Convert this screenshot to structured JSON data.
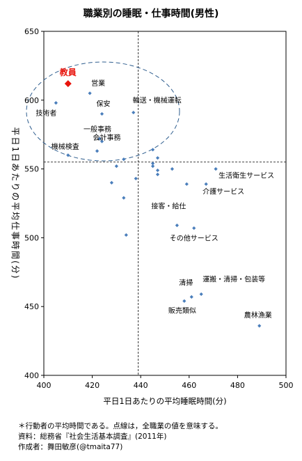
{
  "chart_data": {
    "type": "scatter",
    "title": "職業別の睡眠・仕事時間(男性)",
    "xlabel": "平日1日あたりの平均睡眠時間(分)",
    "ylabel": "平日1日あたりの平均仕事時間(分)",
    "xlim": [
      400,
      500
    ],
    "ylim": [
      400,
      650
    ],
    "xticks": [
      "400",
      "420",
      "440",
      "460",
      "480",
      "500"
    ],
    "yticks": [
      "400",
      "450",
      "500",
      "550",
      "600",
      "650"
    ],
    "grid": false,
    "reference_lines": {
      "x": 439,
      "y": 555
    },
    "marker_color": "#4a7ebb",
    "highlight_color": "#e8140c",
    "highlight": {
      "label": "教員",
      "x": 410,
      "y": 612
    },
    "points": [
      {
        "label": "技術者",
        "x": 405,
        "y": 598
      },
      {
        "label": "営業",
        "x": 419,
        "y": 605
      },
      {
        "label": "保安",
        "x": 424,
        "y": 590
      },
      {
        "label": "輸送・機械運転",
        "x": 437,
        "y": 591
      },
      {
        "label": "一般事務",
        "x": 423,
        "y": 572
      },
      {
        "label": "",
        "x": 424,
        "y": 570
      },
      {
        "label": "会計事務",
        "x": 422,
        "y": 563
      },
      {
        "label": "機械検査",
        "x": 410,
        "y": 560
      },
      {
        "label": "",
        "x": 433,
        "y": 557
      },
      {
        "label": "",
        "x": 430,
        "y": 552
      },
      {
        "label": "",
        "x": 445,
        "y": 564
      },
      {
        "label": "",
        "x": 447,
        "y": 558
      },
      {
        "label": "",
        "x": 445,
        "y": 554
      },
      {
        "label": "",
        "x": 445,
        "y": 552
      },
      {
        "label": "",
        "x": 447,
        "y": 549
      },
      {
        "label": "",
        "x": 447,
        "y": 546
      },
      {
        "label": "",
        "x": 453,
        "y": 550
      },
      {
        "label": "",
        "x": 438,
        "y": 543
      },
      {
        "label": "",
        "x": 428,
        "y": 540
      },
      {
        "label": "生活衛生サービス",
        "x": 471,
        "y": 550
      },
      {
        "label": "",
        "x": 459,
        "y": 539
      },
      {
        "label": "介護サービス",
        "x": 467,
        "y": 539
      },
      {
        "label": "",
        "x": 433,
        "y": 529
      },
      {
        "label": "接客・給仕",
        "x": 455,
        "y": 509
      },
      {
        "label": "その他サービス",
        "x": 462,
        "y": 507
      },
      {
        "label": "",
        "x": 434,
        "y": 502
      },
      {
        "label": "清掃",
        "x": 461,
        "y": 457
      },
      {
        "label": "運搬・清掃・包装等",
        "x": 465,
        "y": 459
      },
      {
        "label": "販売類似",
        "x": 458,
        "y": 454
      },
      {
        "label": "農林漁業",
        "x": 489,
        "y": 436
      }
    ]
  },
  "notes": {
    "line1": "＊行動者の平均時間である。点線は，全職業の値を意味する。",
    "line2": "資料：総務省『社会生活基本調査』(2011年)",
    "line3": "作成者：舞田敏彦(@tmaita77)"
  }
}
